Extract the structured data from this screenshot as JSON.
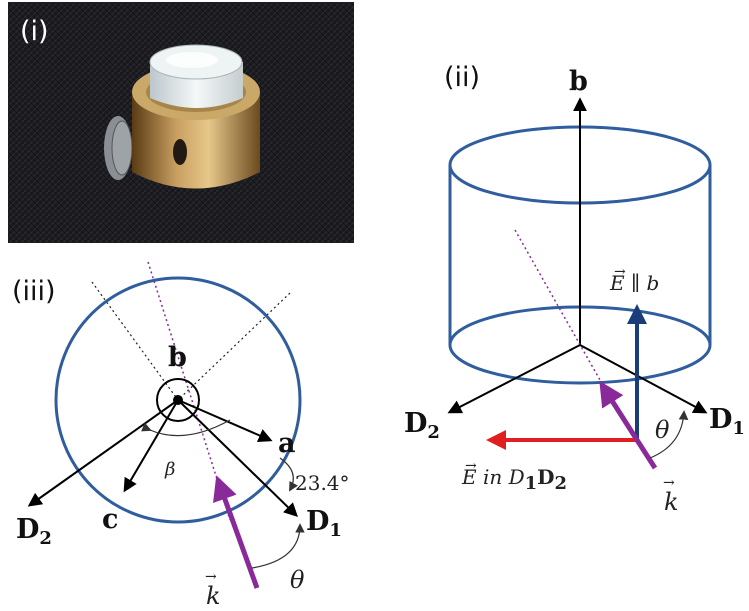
{
  "panels": {
    "i": {
      "label": "(i)"
    },
    "ii": {
      "label": "(ii)",
      "axis_b": "b",
      "axis_d1": "D",
      "axis_d1_sub": "1",
      "axis_d2": "D",
      "axis_d2_sub": "2",
      "e_parallel": "E ∥ b",
      "e_in": "E in D",
      "e_in_sub1": "1",
      "e_in_mid": "D",
      "e_in_sub2": "2",
      "theta": "θ",
      "k": "k"
    },
    "iii": {
      "label": "(iii)",
      "axis_b": "b",
      "axis_a": "a",
      "axis_c": "c",
      "axis_d1": "D",
      "axis_d1_sub": "1",
      "axis_d2": "D",
      "axis_d2_sub": "2",
      "beta": "β",
      "angle": "23.4°",
      "theta": "θ",
      "k": "k"
    }
  },
  "colors": {
    "circle_blue": "#2f5d9e",
    "purple": "#8a2a9a",
    "red": "#e02020",
    "navy": "#1a3d7a"
  }
}
